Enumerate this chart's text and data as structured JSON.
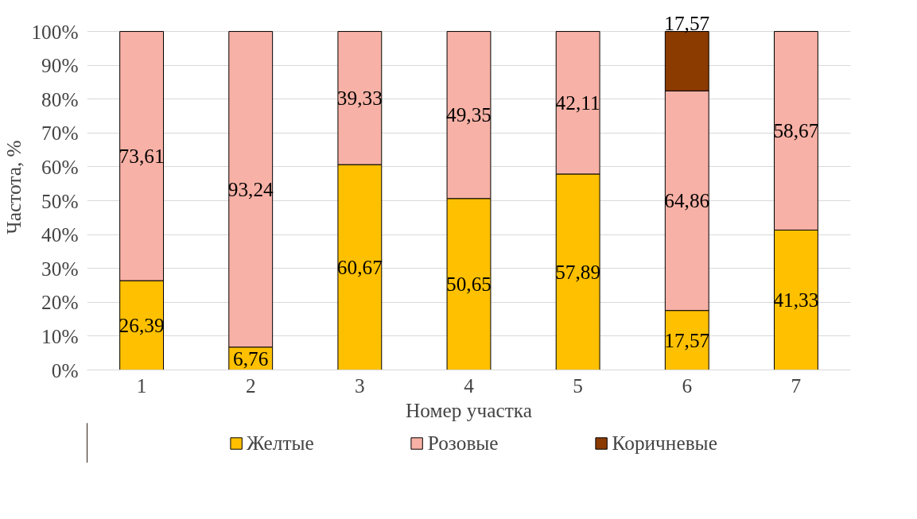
{
  "chart_data": {
    "type": "bar",
    "stacked": true,
    "xlabel": "Номер участка",
    "ylabel": "Частота, %",
    "categories": [
      "1",
      "2",
      "3",
      "4",
      "5",
      "6",
      "7"
    ],
    "series": [
      {
        "name": "Желтые",
        "color": "#ffc000",
        "values": [
          26.39,
          6.76,
          60.67,
          50.65,
          57.89,
          17.57,
          41.33
        ],
        "value_labels": [
          "26,39",
          "6,76",
          "60,67",
          "50,65",
          "57,89",
          "17,57",
          "41,33"
        ]
      },
      {
        "name": "Розовые",
        "color": "#f8b1a6",
        "values": [
          73.61,
          93.24,
          39.33,
          49.35,
          42.11,
          64.86,
          58.67
        ],
        "value_labels": [
          "73,61",
          "93,24",
          "39,33",
          "49,35",
          "42,11",
          "64,86",
          "58,67"
        ]
      },
      {
        "name": "Коричневые",
        "color": "#8b3a00",
        "values": [
          null,
          null,
          null,
          null,
          null,
          17.57,
          null
        ],
        "value_labels": [
          null,
          null,
          null,
          null,
          null,
          "17,57",
          null
        ]
      }
    ],
    "ylim": [
      0,
      100
    ],
    "yticks": [
      {
        "value": 0,
        "label": "0%"
      },
      {
        "value": 10,
        "label": "10%"
      },
      {
        "value": 20,
        "label": "20%"
      },
      {
        "value": 30,
        "label": "30%"
      },
      {
        "value": 40,
        "label": "40%"
      },
      {
        "value": 50,
        "label": "50%"
      },
      {
        "value": 60,
        "label": "60%"
      },
      {
        "value": 70,
        "label": "70%"
      },
      {
        "value": 80,
        "label": "80%"
      },
      {
        "value": 90,
        "label": "90%"
      },
      {
        "value": 100,
        "label": "100%"
      }
    ],
    "grid": "y",
    "legend": "bottom"
  }
}
